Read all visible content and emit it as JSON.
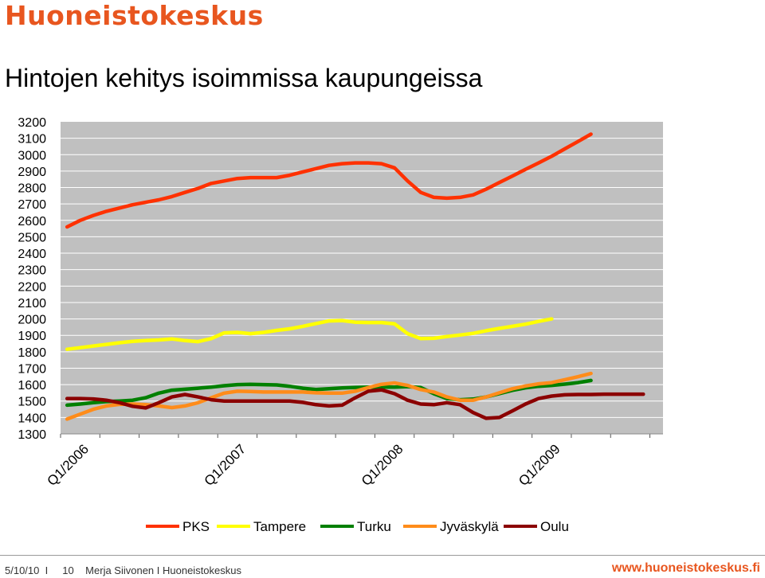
{
  "header": {
    "brand": "Huoneistokeskus",
    "title": "Hintojen kehitys isoimmissa kaupungeissa"
  },
  "colors": {
    "brand": "#e8561f",
    "plot_bg": "#c0c0c0",
    "grid": "#ffffff"
  },
  "chart_data": {
    "type": "line",
    "title": "Hintojen kehitys isoimmissa kaupungeissa",
    "xlabel": "",
    "ylabel": "",
    "ylim": [
      1300,
      3200
    ],
    "grid": true,
    "legend_position": "bottom",
    "yticks": [
      "3200",
      "3100",
      "3000",
      "2900",
      "2800",
      "2700",
      "2600",
      "2500",
      "2400",
      "2300",
      "2200",
      "2100",
      "2000",
      "1900",
      "1800",
      "1700",
      "1600",
      "1500",
      "1400",
      "1300"
    ],
    "x_labels": [
      "Q1/2006",
      "Q1/2007",
      "Q1/2008",
      "Q1/2009"
    ],
    "x_label_positions": [
      0,
      12,
      24,
      36
    ],
    "x_count": 46,
    "series": [
      {
        "name": "PKS",
        "color": "#ff3100",
        "values": [
          2560,
          2600,
          2630,
          2655,
          2675,
          2695,
          2710,
          2725,
          2745,
          2770,
          2795,
          2825,
          2840,
          2855,
          2860,
          2860,
          2860,
          2875,
          2895,
          2915,
          2935,
          2945,
          2950,
          2950,
          2945,
          2920,
          2840,
          2770,
          2740,
          2735,
          2740,
          2755,
          2790,
          2830,
          2870,
          2910,
          2950,
          2990,
          3035,
          3080,
          3125
        ]
      },
      {
        "name": "Tampere",
        "color": "#ffff00",
        "values": [
          1815,
          1825,
          1835,
          1845,
          1855,
          1863,
          1868,
          1872,
          1878,
          1868,
          1862,
          1880,
          1915,
          1918,
          1910,
          1918,
          1930,
          1940,
          1955,
          1972,
          1988,
          1990,
          1980,
          1978,
          1978,
          1970,
          1910,
          1880,
          1882,
          1893,
          1902,
          1912,
          1928,
          1942,
          1955,
          1968,
          1985,
          2000
        ]
      },
      {
        "name": "Turku",
        "color": "#008000",
        "values": [
          1475,
          1482,
          1490,
          1497,
          1500,
          1505,
          1520,
          1548,
          1566,
          1572,
          1578,
          1585,
          1593,
          1600,
          1602,
          1600,
          1598,
          1590,
          1578,
          1570,
          1575,
          1580,
          1583,
          1585,
          1585,
          1585,
          1588,
          1582,
          1545,
          1515,
          1508,
          1512,
          1525,
          1545,
          1565,
          1580,
          1590,
          1595,
          1603,
          1612,
          1625
        ]
      },
      {
        "name": "Jyväskylä",
        "color": "#ff8c1a",
        "values": [
          1390,
          1420,
          1450,
          1470,
          1480,
          1482,
          1478,
          1470,
          1460,
          1470,
          1490,
          1520,
          1548,
          1560,
          1558,
          1555,
          1555,
          1555,
          1555,
          1550,
          1548,
          1548,
          1560,
          1582,
          1602,
          1610,
          1595,
          1570,
          1555,
          1525,
          1505,
          1505,
          1525,
          1550,
          1575,
          1592,
          1605,
          1612,
          1630,
          1648,
          1668
        ]
      },
      {
        "name": "Oulu",
        "color": "#8b0000",
        "values": [
          1515,
          1515,
          1513,
          1505,
          1490,
          1468,
          1458,
          1490,
          1525,
          1540,
          1525,
          1508,
          1500,
          1500,
          1500,
          1500,
          1500,
          1500,
          1492,
          1478,
          1470,
          1475,
          1520,
          1560,
          1568,
          1545,
          1505,
          1482,
          1478,
          1490,
          1478,
          1430,
          1395,
          1400,
          1440,
          1482,
          1515,
          1530,
          1538,
          1540,
          1540,
          1542,
          1542,
          1542,
          1542
        ]
      }
    ]
  },
  "footer": {
    "meta": "5/10/10  I     10    Merja Siivonen I Huoneistokeskus",
    "url": "www.huoneistokeskus.fi"
  }
}
